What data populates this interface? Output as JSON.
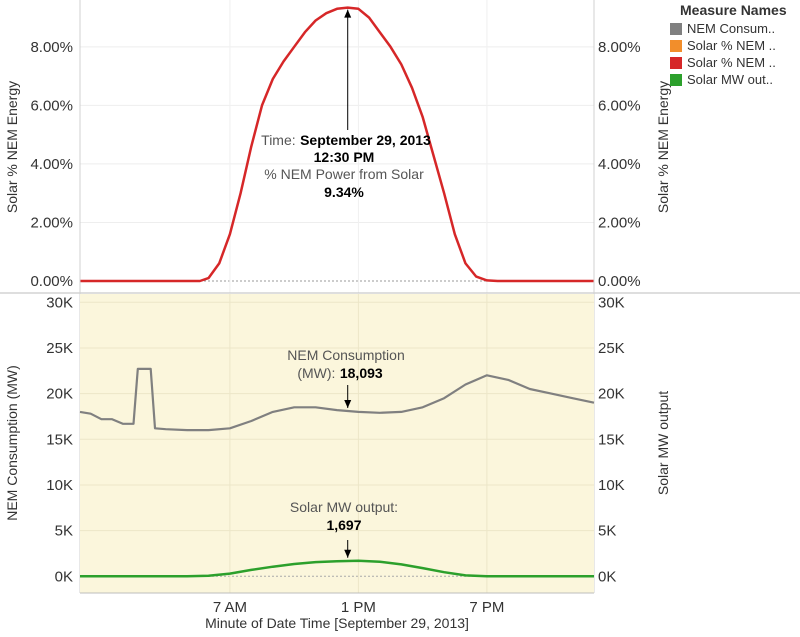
{
  "colors": {
    "nem": "#808080",
    "solar_pct_orange": "#f28e2b",
    "solar_pct_red": "#d62728",
    "solar_mw": "#2ca02c",
    "panel_bg": "#fbf6dc"
  },
  "legend": {
    "title": "Measure Names",
    "items": [
      {
        "label": "NEM Consum..",
        "color": "#808080"
      },
      {
        "label": "Solar % NEM ..",
        "color": "#f28e2b"
      },
      {
        "label": "Solar % NEM ..",
        "color": "#d62728"
      },
      {
        "label": "Solar MW out..",
        "color": "#2ca02c"
      }
    ]
  },
  "chart_data": [
    {
      "type": "line",
      "title": "",
      "ylabel": "Solar % NEM Energy",
      "ylabel_right": "Solar % NEM Energy",
      "ylim": [
        0,
        9.6
      ],
      "yticks": [
        0,
        2,
        4,
        6,
        8
      ],
      "ytick_labels": [
        "0.00%",
        "2.00%",
        "4.00%",
        "6.00%",
        "8.00%"
      ],
      "series": [
        {
          "name": "Solar % NEM Power",
          "color": "#d62728",
          "x": [
            0,
            3,
            5.6,
            6.0,
            6.5,
            7,
            7.5,
            8,
            8.5,
            9,
            9.5,
            10,
            10.5,
            11,
            11.5,
            12,
            12.5,
            13,
            13.5,
            14,
            14.5,
            15,
            15.5,
            16,
            16.5,
            17,
            17.5,
            18,
            18.5,
            19,
            19.5,
            20,
            24
          ],
          "y": [
            0,
            0,
            0,
            0.1,
            0.6,
            1.6,
            3.0,
            4.6,
            6.0,
            6.9,
            7.5,
            8.0,
            8.5,
            8.9,
            9.15,
            9.3,
            9.34,
            9.3,
            9.0,
            8.5,
            8.0,
            7.4,
            6.6,
            5.6,
            4.3,
            3.0,
            1.6,
            0.6,
            0.15,
            0.02,
            0,
            0,
            0
          ]
        }
      ],
      "annotation": {
        "time_label": "Time:",
        "time_value": "September 29, 2013",
        "clock_value": "12:30 PM",
        "measure_label": "% NEM Power from Solar",
        "measure_value": "9.34%",
        "x": 12.5,
        "y": 9.34
      }
    },
    {
      "type": "line",
      "title": "",
      "xlabel": "Minute of Date Time [September 29, 2013]",
      "ylabel": "NEM Consumption (MW)",
      "ylabel_right": "Solar MW output",
      "ylim": [
        -1500,
        32000
      ],
      "yticks": [
        0,
        5000,
        10000,
        15000,
        20000,
        25000,
        30000
      ],
      "ytick_labels": [
        "0K",
        "5K",
        "10K",
        "15K",
        "20K",
        "25K",
        "30K"
      ],
      "xticks": [
        7,
        13,
        19
      ],
      "xtick_labels": [
        "7 AM",
        "1 PM",
        "7 PM"
      ],
      "series": [
        {
          "name": "NEM Consumption",
          "color": "#808080",
          "x": [
            0,
            0.5,
            1,
            1.5,
            2,
            2.5,
            2.7,
            3.3,
            3.5,
            4,
            5,
            6,
            7,
            8,
            9,
            10,
            11,
            12,
            13,
            14,
            15,
            16,
            17,
            18,
            19,
            20,
            21,
            22,
            23,
            24
          ],
          "y": [
            18000,
            17800,
            17200,
            17200,
            16700,
            16700,
            22700,
            22700,
            16200,
            16100,
            16000,
            16000,
            16200,
            17000,
            18000,
            18500,
            18500,
            18200,
            18000,
            17900,
            18000,
            18500,
            19500,
            21000,
            22000,
            21500,
            20500,
            20000,
            19500,
            19000
          ]
        },
        {
          "name": "Solar MW output",
          "color": "#2ca02c",
          "x": [
            0,
            5,
            6,
            7,
            8,
            9,
            10,
            11,
            12,
            13,
            14,
            15,
            16,
            17,
            18,
            19,
            24
          ],
          "y": [
            0,
            0,
            50,
            300,
            700,
            1050,
            1350,
            1550,
            1650,
            1697,
            1600,
            1300,
            900,
            450,
            100,
            10,
            0
          ]
        }
      ],
      "annotations": [
        {
          "label": "NEM Consumption",
          "label2": "(MW):",
          "value": "18,093",
          "x": 12.5,
          "y": 18093
        },
        {
          "label": "Solar MW output:",
          "value": "1,697",
          "x": 12.5,
          "y": 1697
        }
      ]
    }
  ]
}
